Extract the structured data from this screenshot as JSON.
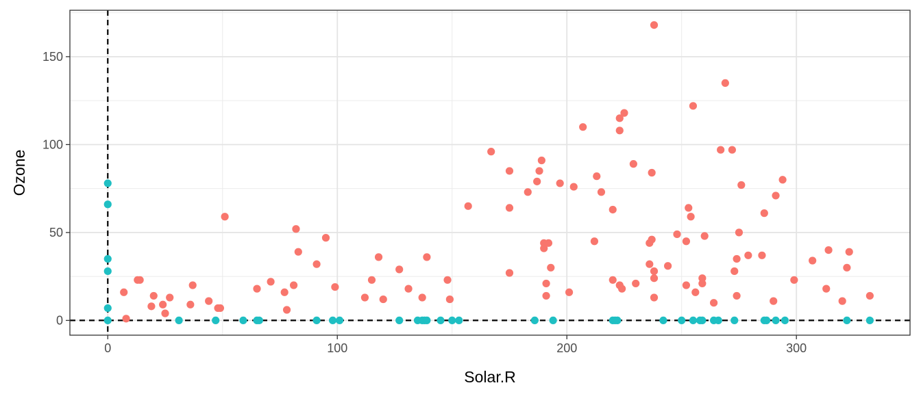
{
  "chart_data": {
    "type": "scatter",
    "xlabel": "Solar.R",
    "ylabel": "Ozone",
    "xlim": [
      -16.5,
      349.5
    ],
    "ylim": [
      -8.4,
      176.4
    ],
    "x_ticks": [
      0,
      100,
      200,
      300
    ],
    "y_ticks": [
      0,
      50,
      100,
      150
    ],
    "grid": true,
    "legend": "none",
    "reference_lines": [
      {
        "orientation": "vertical",
        "value": 0,
        "style": "dashed"
      },
      {
        "orientation": "horizontal",
        "value": 0,
        "style": "dashed"
      }
    ],
    "series": [
      {
        "color": "#F8766D",
        "points": [
          [
            7,
            16
          ],
          [
            8,
            1
          ],
          [
            13,
            23
          ],
          [
            14,
            23
          ],
          [
            19,
            8
          ],
          [
            20,
            14
          ],
          [
            24,
            9
          ],
          [
            25,
            4
          ],
          [
            27,
            13
          ],
          [
            36,
            9
          ],
          [
            37,
            20
          ],
          [
            44,
            11
          ],
          [
            48,
            7
          ],
          [
            49,
            7
          ],
          [
            51,
            59
          ],
          [
            65,
            18
          ],
          [
            71,
            22
          ],
          [
            77,
            16
          ],
          [
            78,
            6
          ],
          [
            81,
            20
          ],
          [
            82,
            52
          ],
          [
            83,
            39
          ],
          [
            91,
            32
          ],
          [
            95,
            47
          ],
          [
            99,
            19
          ],
          [
            112,
            13
          ],
          [
            115,
            23
          ],
          [
            118,
            36
          ],
          [
            120,
            12
          ],
          [
            127,
            29
          ],
          [
            131,
            18
          ],
          [
            137,
            13
          ],
          [
            139,
            36
          ],
          [
            148,
            23
          ],
          [
            149,
            12
          ],
          [
            157,
            65
          ],
          [
            167,
            96
          ],
          [
            175,
            85
          ],
          [
            175,
            64
          ],
          [
            175,
            27
          ],
          [
            183,
            73
          ],
          [
            187,
            79
          ],
          [
            188,
            85
          ],
          [
            189,
            91
          ],
          [
            190,
            44
          ],
          [
            190,
            41
          ],
          [
            191,
            21
          ],
          [
            191,
            14
          ],
          [
            192,
            44
          ],
          [
            193,
            30
          ],
          [
            197,
            78
          ],
          [
            201,
            16
          ],
          [
            203,
            76
          ],
          [
            207,
            110
          ],
          [
            212,
            45
          ],
          [
            213,
            82
          ],
          [
            215,
            73
          ],
          [
            220,
            63
          ],
          [
            220,
            23
          ],
          [
            223,
            115
          ],
          [
            223,
            108
          ],
          [
            223,
            20
          ],
          [
            224,
            18
          ],
          [
            225,
            118
          ],
          [
            229,
            89
          ],
          [
            230,
            21
          ],
          [
            236,
            44
          ],
          [
            236,
            32
          ],
          [
            237,
            46
          ],
          [
            237,
            84
          ],
          [
            238,
            28
          ],
          [
            238,
            24
          ],
          [
            238,
            13
          ],
          [
            238,
            168
          ],
          [
            244,
            31
          ],
          [
            248,
            49
          ],
          [
            252,
            45
          ],
          [
            252,
            20
          ],
          [
            253,
            64
          ],
          [
            254,
            59
          ],
          [
            255,
            122
          ],
          [
            256,
            16
          ],
          [
            259,
            24
          ],
          [
            259,
            21
          ],
          [
            260,
            48
          ],
          [
            264,
            10
          ],
          [
            267,
            97
          ],
          [
            269,
            135
          ],
          [
            272,
            97
          ],
          [
            273,
            28
          ],
          [
            274,
            35
          ],
          [
            274,
            14
          ],
          [
            275,
            50
          ],
          [
            276,
            77
          ],
          [
            279,
            37
          ],
          [
            285,
            37
          ],
          [
            286,
            61
          ],
          [
            290,
            11
          ],
          [
            291,
            71
          ],
          [
            294,
            80
          ],
          [
            299,
            23
          ],
          [
            307,
            34
          ],
          [
            313,
            18
          ],
          [
            314,
            40
          ],
          [
            320,
            11
          ],
          [
            322,
            30
          ],
          [
            323,
            39
          ],
          [
            332,
            14
          ]
        ]
      },
      {
        "color": "#1FBFC3",
        "points": [
          [
            0,
            78
          ],
          [
            0,
            66
          ],
          [
            0,
            35
          ],
          [
            0,
            28
          ],
          [
            0,
            7
          ],
          [
            0,
            0
          ],
          [
            31,
            0
          ],
          [
            47,
            0
          ],
          [
            59,
            0
          ],
          [
            65,
            0
          ],
          [
            66,
            0
          ],
          [
            91,
            0
          ],
          [
            98,
            0
          ],
          [
            101,
            0
          ],
          [
            127,
            0
          ],
          [
            135,
            0
          ],
          [
            137,
            0
          ],
          [
            138,
            0
          ],
          [
            139,
            0
          ],
          [
            145,
            0
          ],
          [
            150,
            0
          ],
          [
            153,
            0
          ],
          [
            186,
            0
          ],
          [
            194,
            0
          ],
          [
            220,
            0
          ],
          [
            221,
            0
          ],
          [
            222,
            0
          ],
          [
            242,
            0
          ],
          [
            250,
            0
          ],
          [
            255,
            0
          ],
          [
            258,
            0
          ],
          [
            259,
            0
          ],
          [
            264,
            0
          ],
          [
            266,
            0
          ],
          [
            273,
            0
          ],
          [
            286,
            0
          ],
          [
            287,
            0
          ],
          [
            291,
            0
          ],
          [
            295,
            0
          ],
          [
            322,
            0
          ],
          [
            332,
            0
          ]
        ]
      }
    ]
  }
}
